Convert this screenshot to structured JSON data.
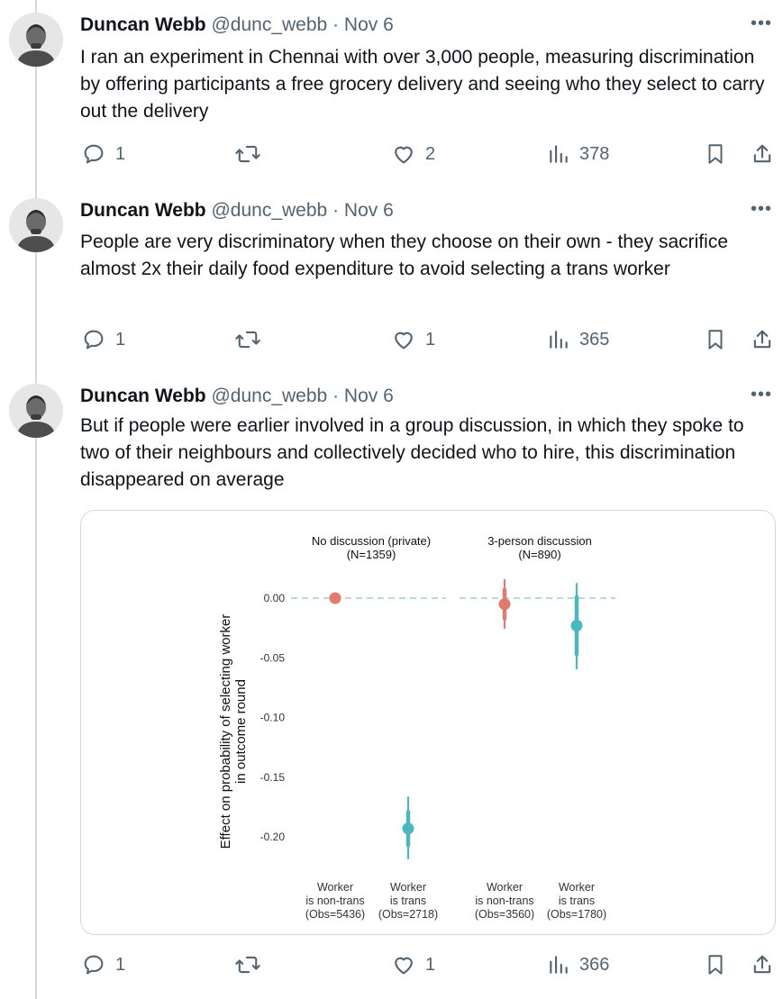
{
  "tweets": [
    {
      "author_name": "Duncan Webb",
      "handle": "@dunc_webb",
      "separator": "·",
      "date": "Nov 6",
      "text": "I ran an experiment in Chennai with over 3,000 people, measuring discrimination by offering participants a free grocery delivery and seeing who they select to carry out the delivery",
      "replies": "1",
      "retweets": "",
      "likes": "2",
      "views": "378"
    },
    {
      "author_name": "Duncan Webb",
      "handle": "@dunc_webb",
      "separator": "·",
      "date": "Nov 6",
      "text": "People are very discriminatory when they choose on their own - they sacrifice almost 2x their daily food expenditure to avoid selecting a trans worker",
      "replies": "1",
      "retweets": "",
      "likes": "1",
      "views": "365"
    },
    {
      "author_name": "Duncan Webb",
      "handle": "@dunc_webb",
      "separator": "·",
      "date": "Nov 6",
      "text": "But if people were earlier involved in a group discussion, in which they spoke to two of their neighbours and collectively decided who to hire, this discrimination disappeared on average",
      "replies": "1",
      "retweets": "",
      "likes": "1",
      "views": "366"
    }
  ],
  "icons": {
    "more": "more-options-icon",
    "reply": "reply-icon",
    "retweet": "retweet-icon",
    "like": "heart-icon",
    "views": "views-chart-icon",
    "bookmark": "bookmark-icon",
    "share": "share-icon"
  },
  "colors": {
    "text": "#0f1419",
    "muted": "#536471",
    "thread_line": "#cfd9de",
    "non_trans": "#e07b6e",
    "trans": "#4ab8bf",
    "zero_line": "#9ecae1"
  },
  "chart_data": {
    "type": "scatter",
    "subtype": "coefficient-plot",
    "ylabel_line1": "Effect on probability of selecting worker",
    "ylabel_line2": "in outcome round",
    "ylim": [
      -0.22,
      0.01
    ],
    "yticks": [
      0.0,
      -0.05,
      -0.1,
      -0.15,
      -0.2
    ],
    "ytick_labels": [
      "0.00",
      "-0.05",
      "-0.10",
      "-0.15",
      "-0.20"
    ],
    "reference_line": 0,
    "panels": [
      {
        "title": "No discussion (private)",
        "n_label": "(N=1359)"
      },
      {
        "title": "3-person discussion",
        "n_label": "(N=890)"
      }
    ],
    "points": [
      {
        "panel": 0,
        "group": "non-trans",
        "estimate": 0.0,
        "ci_low": 0.0,
        "ci_high": 0.0,
        "ci90_low": 0.0,
        "ci90_high": 0.0,
        "label_lines": [
          "Worker",
          "is non-trans",
          "(Obs=5436)"
        ]
      },
      {
        "panel": 0,
        "group": "trans",
        "estimate": -0.193,
        "ci_low": -0.218,
        "ci_high": -0.167,
        "ci90_low": -0.207,
        "ci90_high": -0.179,
        "label_lines": [
          "Worker",
          "is trans",
          "(Obs=2718)"
        ]
      },
      {
        "panel": 1,
        "group": "non-trans",
        "estimate": -0.005,
        "ci_low": -0.025,
        "ci_high": 0.015,
        "ci90_low": -0.017,
        "ci90_high": 0.007,
        "label_lines": [
          "Worker",
          "is non-trans",
          "(Obs=3560)"
        ]
      },
      {
        "panel": 1,
        "group": "trans",
        "estimate": -0.023,
        "ci_low": -0.059,
        "ci_high": 0.012,
        "ci90_low": -0.047,
        "ci90_high": 0.001,
        "label_lines": [
          "Worker",
          "is trans",
          "(Obs=1780)"
        ]
      }
    ]
  }
}
